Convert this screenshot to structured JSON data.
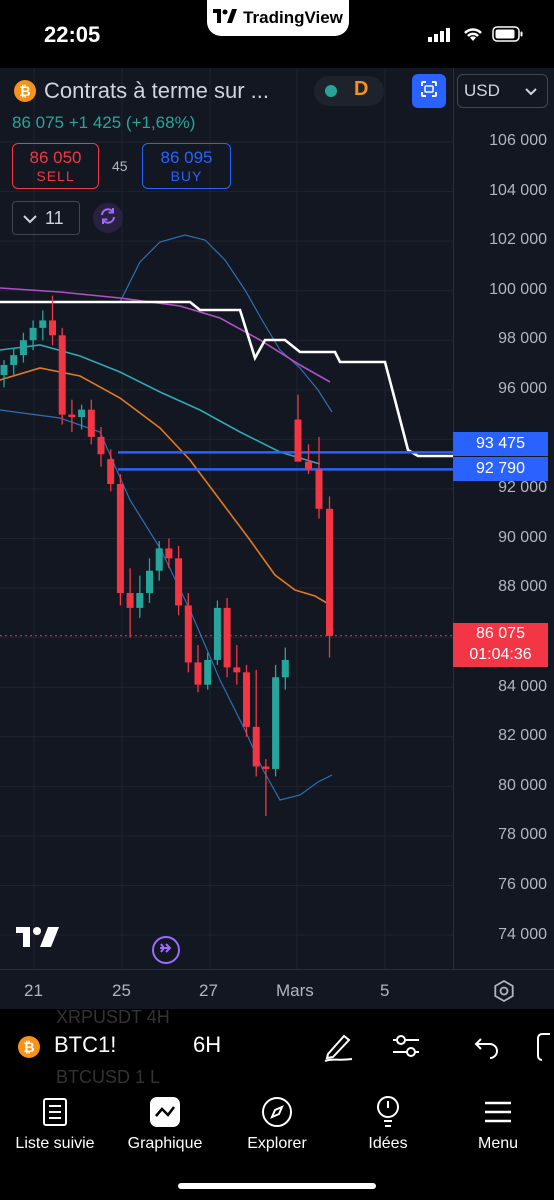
{
  "status_bar": {
    "time": "22:05",
    "app_banner": "TradingView"
  },
  "header": {
    "symbol_title": "Contrats à terme sur ...",
    "last_price": "86075",
    "change": "+1425",
    "change_percent": "(+1,68%)",
    "price_line": "86 075 +1 425 (+1,68%)",
    "session_badge": "D",
    "currency": "USD",
    "sell_price": "86 050",
    "sell_label": "SELL",
    "buy_price": "86 095",
    "buy_label": "BUY",
    "spread": "45",
    "indicators_count": "11"
  },
  "price_scale": {
    "ticks": [
      "106 000",
      "104 000",
      "102 000",
      "100 000",
      "98 000",
      "96 000",
      "94 000",
      "92 000",
      "90 000",
      "88 000",
      "86 000",
      "84 000",
      "82 000",
      "80 000",
      "78 000",
      "76 000",
      "74 000"
    ],
    "level_1": "93 475",
    "level_2": "92 790",
    "last_price": "86 075",
    "countdown": "01:04:36"
  },
  "time_axis": {
    "labels": [
      "21",
      "25",
      "27",
      "Mars",
      "5"
    ]
  },
  "symbol_toolbar": {
    "symbol": "BTC1!",
    "interval": "6H",
    "ghost_1": "XRPUSDT   4H",
    "ghost_2": "BTCUSD   1 L"
  },
  "bottom_nav": {
    "items": [
      {
        "label": "Liste suivie",
        "icon": "watchlist-icon"
      },
      {
        "label": "Graphique",
        "icon": "chart-icon"
      },
      {
        "label": "Explorer",
        "icon": "compass-icon"
      },
      {
        "label": "Idées",
        "icon": "lightbulb-icon"
      },
      {
        "label": "Menu",
        "icon": "hamburger-icon"
      }
    ]
  },
  "colors": {
    "up": "#26a69a",
    "down": "#f23645",
    "accent": "#2962ff",
    "background": "#131722"
  },
  "chart_data": {
    "type": "candlestick",
    "timeframe": "6H",
    "x_labels": [
      "21",
      "25",
      "27",
      "Mars",
      "5"
    ],
    "ylim": [
      73000,
      107000
    ],
    "horizontal_levels": [
      93475,
      92790
    ],
    "last_price": 86075,
    "candles": [
      {
        "o": 96600,
        "h": 97200,
        "l": 96100,
        "c": 97000
      },
      {
        "o": 97000,
        "h": 97700,
        "l": 96600,
        "c": 97400
      },
      {
        "o": 97400,
        "h": 98300,
        "l": 97100,
        "c": 98000
      },
      {
        "o": 98000,
        "h": 98800,
        "l": 97600,
        "c": 98500
      },
      {
        "o": 98500,
        "h": 99200,
        "l": 98000,
        "c": 98800
      },
      {
        "o": 98800,
        "h": 99800,
        "l": 97800,
        "c": 98200
      },
      {
        "o": 98200,
        "h": 98500,
        "l": 94600,
        "c": 95000
      },
      {
        "o": 95000,
        "h": 95600,
        "l": 94300,
        "c": 94900
      },
      {
        "o": 94900,
        "h": 95400,
        "l": 94400,
        "c": 95200
      },
      {
        "o": 95200,
        "h": 95600,
        "l": 93800,
        "c": 94100
      },
      {
        "o": 94100,
        "h": 94500,
        "l": 92900,
        "c": 93400
      },
      {
        "o": 93200,
        "h": 93600,
        "l": 91900,
        "c": 92200
      },
      {
        "o": 92200,
        "h": 92600,
        "l": 87300,
        "c": 87800
      },
      {
        "o": 87800,
        "h": 88800,
        "l": 86000,
        "c": 87200
      },
      {
        "o": 87200,
        "h": 88500,
        "l": 86800,
        "c": 87800
      },
      {
        "o": 87800,
        "h": 89200,
        "l": 87400,
        "c": 88700
      },
      {
        "o": 88700,
        "h": 89900,
        "l": 88300,
        "c": 89600
      },
      {
        "o": 89600,
        "h": 90000,
        "l": 88800,
        "c": 89200
      },
      {
        "o": 89200,
        "h": 89700,
        "l": 86900,
        "c": 87300
      },
      {
        "o": 87300,
        "h": 87800,
        "l": 84600,
        "c": 85000
      },
      {
        "o": 85000,
        "h": 85700,
        "l": 83800,
        "c": 84100
      },
      {
        "o": 84100,
        "h": 85400,
        "l": 83900,
        "c": 85100
      },
      {
        "o": 85100,
        "h": 87500,
        "l": 84900,
        "c": 87200
      },
      {
        "o": 87200,
        "h": 87600,
        "l": 84400,
        "c": 84800
      },
      {
        "o": 84800,
        "h": 85700,
        "l": 84100,
        "c": 84600
      },
      {
        "o": 84600,
        "h": 84900,
        "l": 82000,
        "c": 82400
      },
      {
        "o": 82400,
        "h": 84700,
        "l": 80400,
        "c": 80800
      },
      {
        "o": 80800,
        "h": 81100,
        "l": 78800,
        "c": 80700
      },
      {
        "o": 80700,
        "h": 84900,
        "l": 80400,
        "c": 84400
      },
      {
        "o": 84400,
        "h": 85600,
        "l": 83900,
        "c": 85100
      },
      {
        "o": 94800,
        "h": 95800,
        "l": 93200,
        "c": 93100
      },
      {
        "o": 93100,
        "h": 93800,
        "l": 92600,
        "c": 92800
      },
      {
        "o": 92800,
        "h": 94100,
        "l": 90800,
        "c": 91200
      },
      {
        "o": 91200,
        "h": 91700,
        "l": 85200,
        "c": 86075
      }
    ]
  }
}
